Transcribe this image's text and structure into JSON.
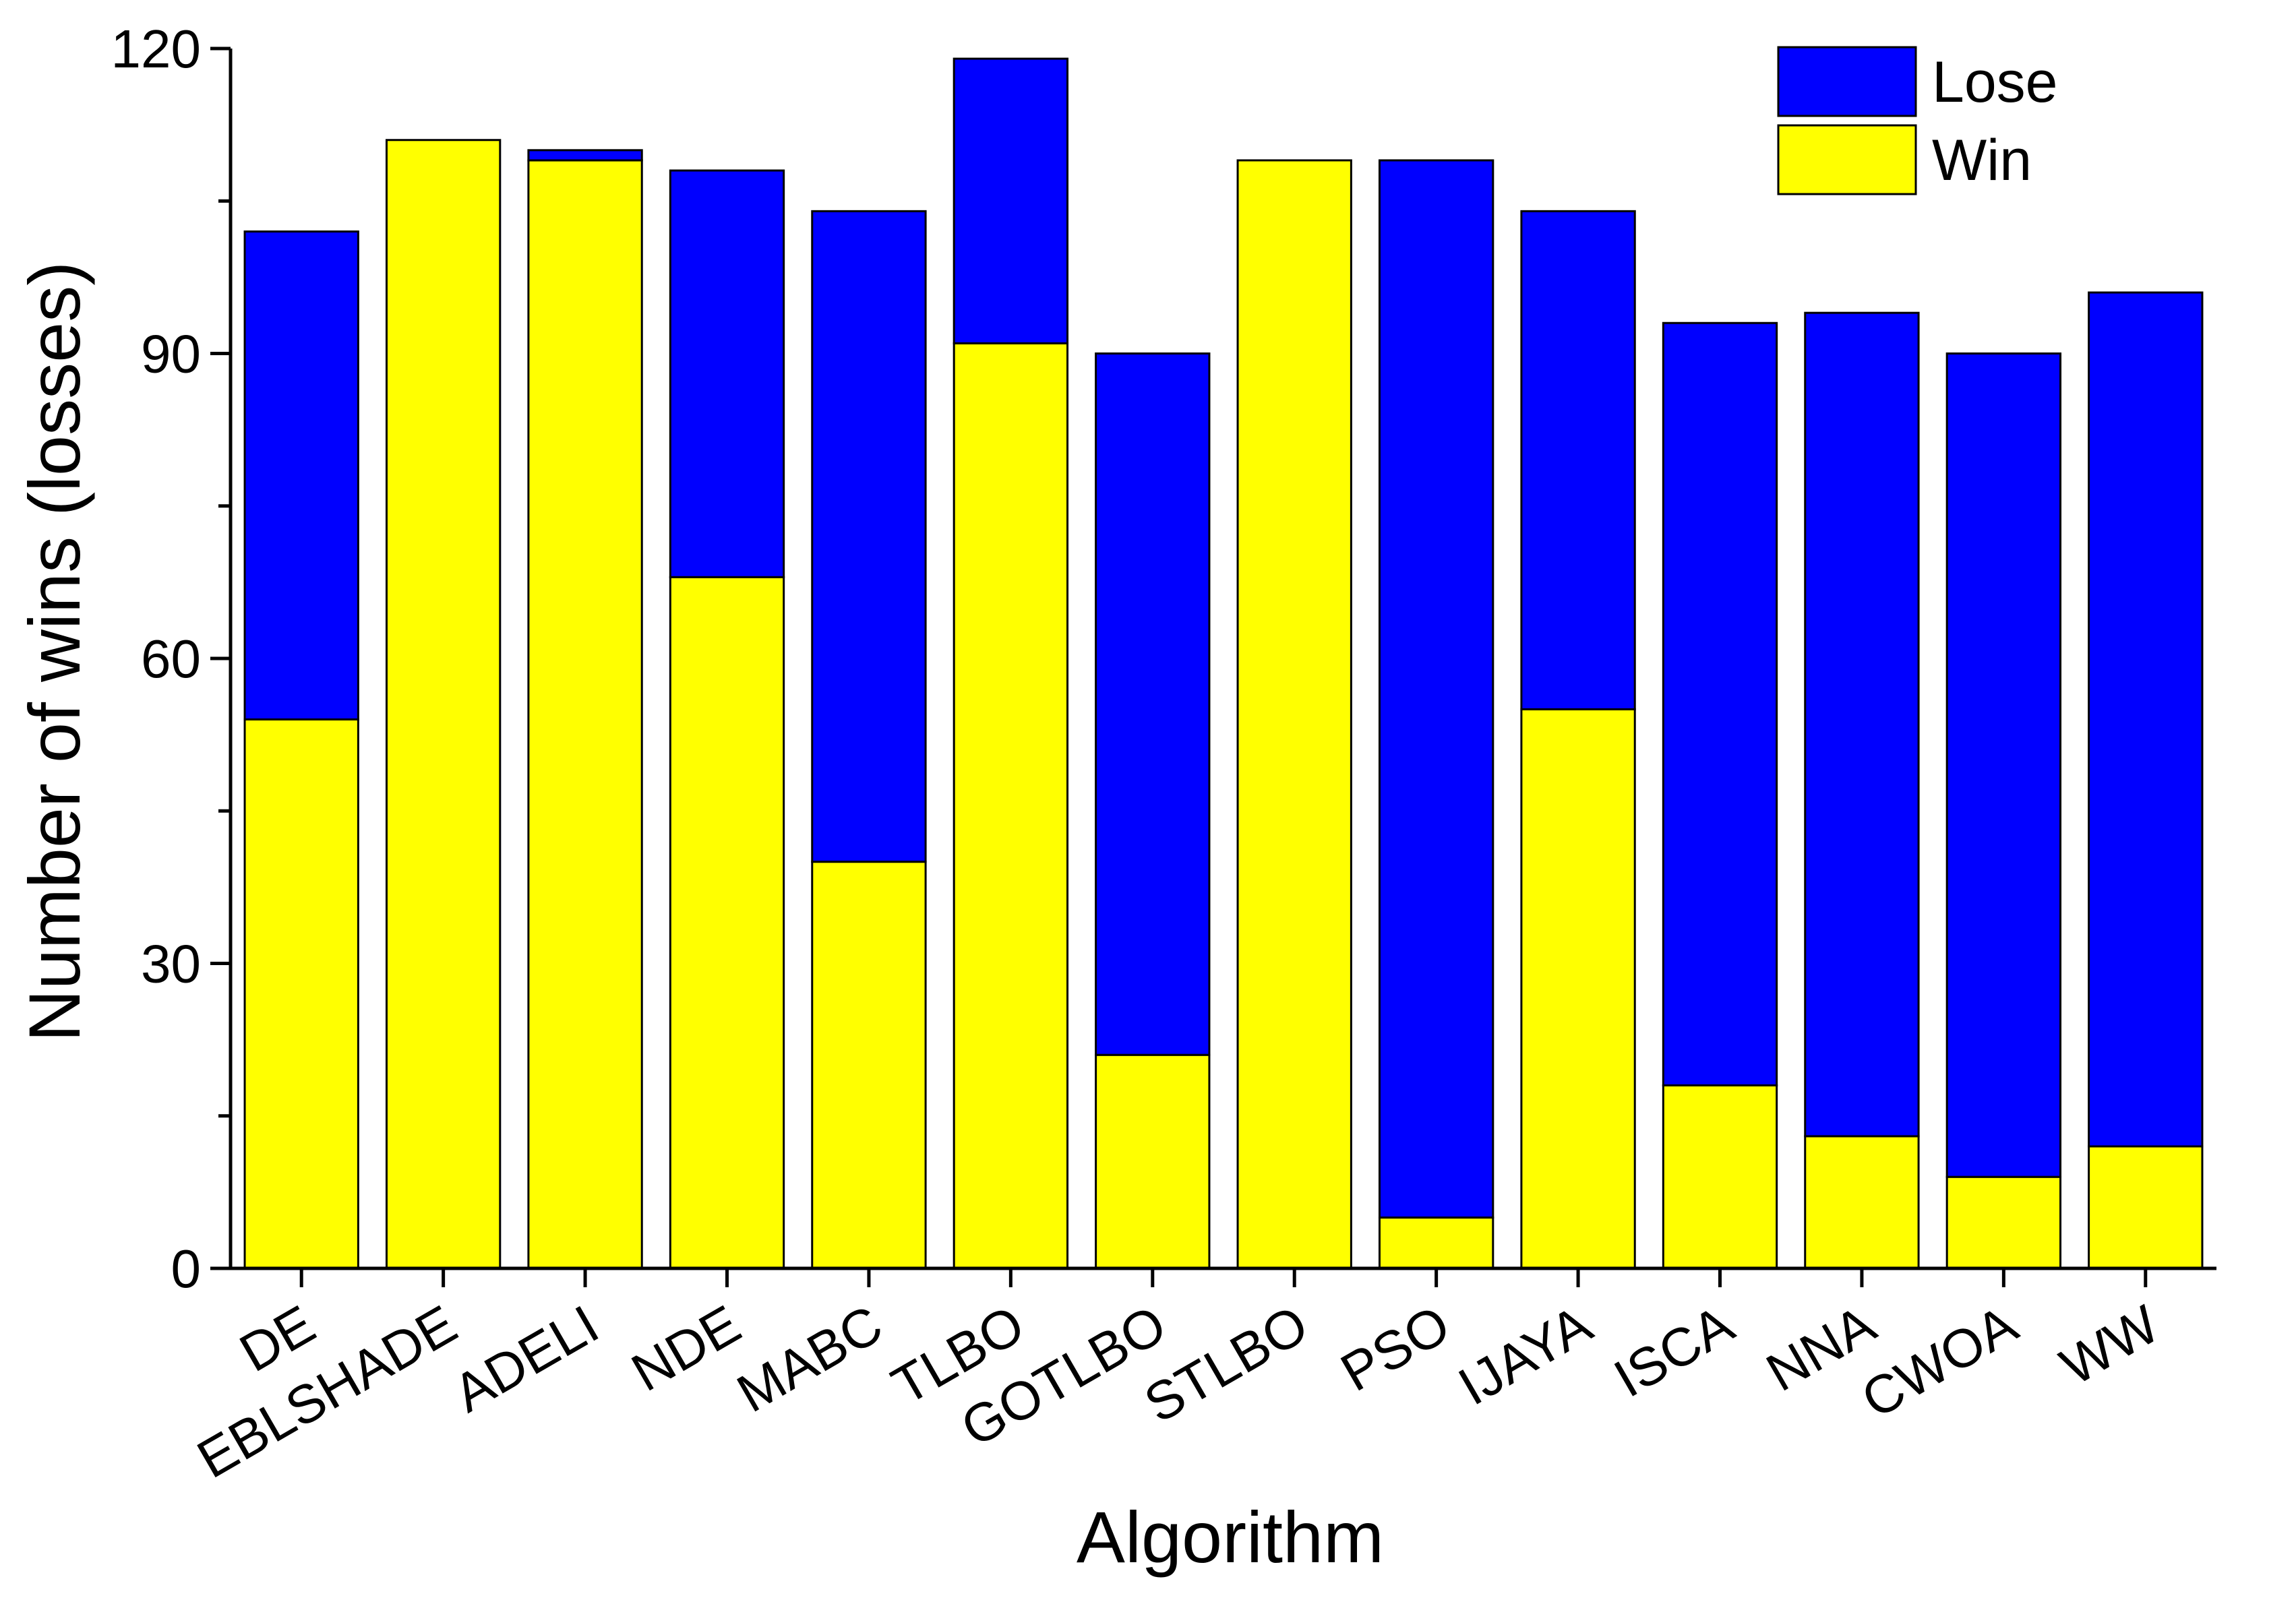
{
  "chart_data": {
    "type": "bar",
    "stacked": true,
    "title": "",
    "xlabel": "Algorithm",
    "ylabel": "Number of wins (losses)",
    "ylim": [
      0,
      120
    ],
    "yticks": [
      0,
      30,
      60,
      90,
      120
    ],
    "ytick_labels": [
      "0",
      "30",
      "60",
      "90",
      "120"
    ],
    "grid": false,
    "legend_position": "top-right",
    "categories": [
      "DE",
      "EBLSHADE",
      "ADELI",
      "NDE",
      "MABC",
      "TLBO",
      "GOTLBO",
      "STLBO",
      "PSO",
      "IJAYA",
      "ISCA",
      "NNA",
      "CWOA",
      "WW"
    ],
    "series": [
      {
        "name": "Win",
        "color": "#FFFF00",
        "values": [
          54,
          111,
          109,
          68,
          40,
          91,
          21,
          109,
          5,
          55,
          18,
          13,
          9,
          12
        ]
      },
      {
        "name": "Lose",
        "color": "#0000FF",
        "values": [
          48,
          0,
          1,
          40,
          64,
          28,
          69,
          0,
          104,
          49,
          75,
          81,
          81,
          84
        ]
      }
    ],
    "legend_order": [
      "Lose",
      "Win"
    ]
  }
}
